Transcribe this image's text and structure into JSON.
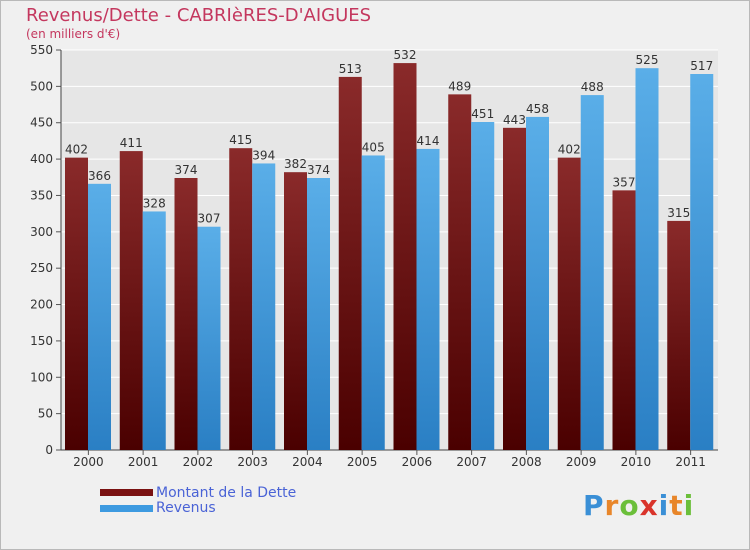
{
  "title": "Revenus/Dette - CABRIèRES-D'AIGUES",
  "subtitle": "(en milliers d'€)",
  "logo": {
    "text": "Proxiti",
    "letters": [
      {
        "ch": "P",
        "color": "#3a8fd6"
      },
      {
        "ch": "r",
        "color": "#e8862a"
      },
      {
        "ch": "o",
        "color": "#6bbf3a"
      },
      {
        "ch": "x",
        "color": "#d9342b"
      },
      {
        "ch": "i",
        "color": "#3a8fd6"
      },
      {
        "ch": "t",
        "color": "#e8862a"
      },
      {
        "ch": "i",
        "color": "#6bbf3a"
      }
    ]
  },
  "legend": {
    "dette_label": "Montant de la Dette",
    "revenus_label": "Revenus"
  },
  "colors": {
    "dette": "#7a1111",
    "revenus": "#3d9ae0",
    "grid": "#ffffff",
    "axis_text": "#333333",
    "background": "#f0f0f0"
  },
  "chart_data": {
    "type": "bar",
    "title": "Revenus/Dette - CABRIèRES-D'AIGUES",
    "subtitle": "(en milliers d'€)",
    "categories": [
      "2000",
      "2001",
      "2002",
      "2003",
      "2004",
      "2005",
      "2006",
      "2007",
      "2008",
      "2009",
      "2010",
      "2011"
    ],
    "series": [
      {
        "name": "Montant de la Dette",
        "values": [
          402,
          411,
          374,
          415,
          382,
          513,
          532,
          489,
          443,
          402,
          357,
          315
        ]
      },
      {
        "name": "Revenus",
        "values": [
          366,
          328,
          307,
          394,
          374,
          405,
          414,
          451,
          458,
          488,
          525,
          517
        ]
      }
    ],
    "ylim": [
      0,
      550
    ],
    "yticks": [
      0,
      50,
      100,
      150,
      200,
      250,
      300,
      350,
      400,
      450,
      500,
      550
    ],
    "grid": true,
    "legend_position": "bottom-left"
  }
}
